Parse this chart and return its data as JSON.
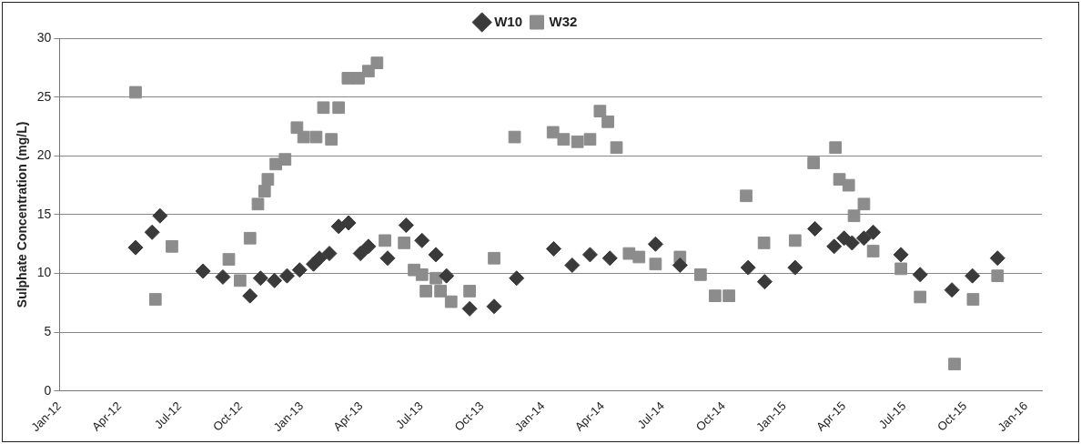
{
  "chart_data": {
    "type": "scatter",
    "ylabel": "Sulphate Concentration (mg/L)",
    "xlim": [
      "2012-01-01",
      "2016-01-25"
    ],
    "xticks": [
      {
        "value": "2012-01-01",
        "label": "Jan-12"
      },
      {
        "value": "2012-04-01",
        "label": "Apr-12"
      },
      {
        "value": "2012-07-01",
        "label": "Jul-12"
      },
      {
        "value": "2012-10-01",
        "label": "Oct-12"
      },
      {
        "value": "2013-01-01",
        "label": "Jan-13"
      },
      {
        "value": "2013-04-01",
        "label": "Apr-13"
      },
      {
        "value": "2013-07-01",
        "label": "Jul-13"
      },
      {
        "value": "2013-10-01",
        "label": "Oct-13"
      },
      {
        "value": "2014-01-01",
        "label": "Jan-14"
      },
      {
        "value": "2014-04-01",
        "label": "Apr-14"
      },
      {
        "value": "2014-07-01",
        "label": "Jul-14"
      },
      {
        "value": "2014-10-01",
        "label": "Oct-14"
      },
      {
        "value": "2015-01-01",
        "label": "Jan-15"
      },
      {
        "value": "2015-04-01",
        "label": "Apr-15"
      },
      {
        "value": "2015-07-01",
        "label": "Jul-15"
      },
      {
        "value": "2015-10-01",
        "label": "Oct-15"
      },
      {
        "value": "2016-01-01",
        "label": "Jan-16"
      }
    ],
    "ylim": [
      0,
      30
    ],
    "yticks": [
      0,
      5,
      10,
      15,
      20,
      25,
      30
    ],
    "grid": "y",
    "legend": "top",
    "series": [
      {
        "name": "W10",
        "color": "#3a3a3a",
        "marker": "diamond",
        "x": [
          "2012-04-25",
          "2012-05-20",
          "2012-06-01",
          "2012-08-05",
          "2012-09-04",
          "2012-10-15",
          "2012-10-31",
          "2012-11-21",
          "2012-12-10",
          "2012-12-29",
          "2013-01-19",
          "2013-01-28",
          "2013-02-12",
          "2013-02-26",
          "2013-03-13",
          "2013-03-31",
          "2013-04-12",
          "2013-05-11",
          "2013-06-08",
          "2013-07-02",
          "2013-07-23",
          "2013-08-08",
          "2013-09-12",
          "2013-10-19",
          "2013-11-22",
          "2014-01-17",
          "2014-02-14",
          "2014-03-13",
          "2014-04-12",
          "2014-06-20",
          "2014-07-27",
          "2014-11-07",
          "2014-12-02",
          "2015-01-17",
          "2015-02-16",
          "2015-03-17",
          "2015-04-01",
          "2015-04-13",
          "2015-05-01",
          "2015-05-15",
          "2015-06-26",
          "2015-07-25",
          "2015-09-11",
          "2015-10-12",
          "2015-11-19"
        ],
        "values": [
          12.2,
          13.5,
          14.9,
          10.2,
          9.7,
          8.1,
          9.6,
          9.4,
          9.8,
          10.3,
          10.8,
          11.3,
          11.7,
          14.0,
          14.3,
          11.7,
          12.3,
          11.3,
          14.1,
          12.8,
          11.6,
          9.8,
          7.0,
          7.2,
          9.6,
          12.1,
          10.7,
          11.6,
          11.3,
          12.5,
          10.7,
          10.5,
          9.3,
          10.5,
          13.8,
          12.3,
          13.0,
          12.6,
          13.0,
          13.5,
          11.6,
          9.9,
          8.6,
          9.8,
          11.3
        ]
      },
      {
        "name": "W32",
        "color": "#8c8c8c",
        "marker": "square",
        "x": [
          "2012-04-25",
          "2012-05-25",
          "2012-06-19",
          "2012-09-13",
          "2012-09-30",
          "2012-10-15",
          "2012-10-27",
          "2012-11-06",
          "2012-11-11",
          "2012-11-23",
          "2012-12-07",
          "2012-12-25",
          "2013-01-04",
          "2013-01-23",
          "2013-02-03",
          "2013-02-15",
          "2013-02-26",
          "2013-03-12",
          "2013-03-28",
          "2013-04-12",
          "2013-04-25",
          "2013-05-07",
          "2013-06-05",
          "2013-06-20",
          "2013-07-02",
          "2013-07-08",
          "2013-07-23",
          "2013-07-30",
          "2013-08-15",
          "2013-09-12",
          "2013-10-19",
          "2013-11-19",
          "2014-01-16",
          "2014-02-01",
          "2014-02-22",
          "2014-03-13",
          "2014-03-28",
          "2014-04-09",
          "2014-04-22",
          "2014-05-11",
          "2014-05-26",
          "2014-06-20",
          "2014-07-27",
          "2014-08-27",
          "2014-09-18",
          "2014-10-09",
          "2014-11-04",
          "2014-12-01",
          "2015-01-17",
          "2015-02-14",
          "2015-03-19",
          "2015-03-25",
          "2015-04-08",
          "2015-04-16",
          "2015-05-01",
          "2015-05-15",
          "2015-06-26",
          "2015-07-25",
          "2015-09-15",
          "2015-10-13",
          "2015-11-19"
        ],
        "values": [
          25.4,
          7.8,
          12.3,
          11.2,
          9.4,
          13.0,
          15.9,
          17.0,
          18.0,
          19.3,
          19.7,
          22.4,
          21.6,
          21.6,
          24.1,
          21.4,
          24.1,
          26.6,
          26.6,
          27.2,
          27.9,
          12.8,
          12.6,
          10.3,
          9.9,
          8.5,
          9.6,
          8.5,
          7.6,
          8.5,
          11.3,
          21.6,
          22.0,
          21.4,
          21.2,
          21.4,
          23.8,
          22.9,
          20.7,
          11.7,
          11.4,
          10.8,
          11.4,
          9.9,
          8.1,
          8.1,
          16.6,
          12.6,
          12.8,
          19.4,
          20.7,
          18.0,
          17.5,
          14.9,
          15.9,
          11.9,
          10.4,
          8.0,
          2.3,
          7.8,
          9.8
        ]
      }
    ]
  }
}
